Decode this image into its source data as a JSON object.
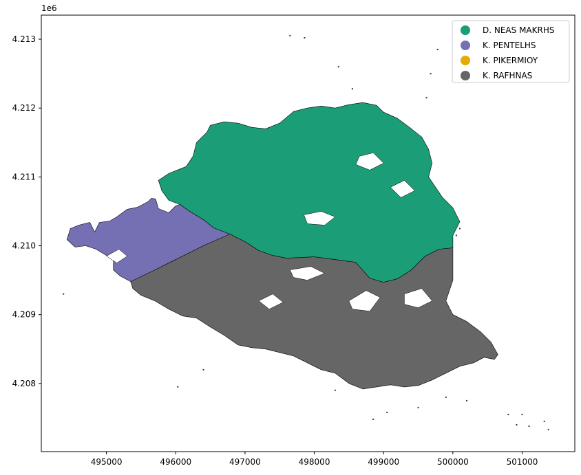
{
  "chart_data": {
    "type": "map",
    "title": "",
    "xlabel": "",
    "ylabel": "",
    "y_offset_label": "1e6",
    "xlim": [
      494060,
      501760
    ],
    "ylim": [
      4207010,
      4213350
    ],
    "x_ticks": [
      {
        "value": 495000,
        "label": "495000"
      },
      {
        "value": 496000,
        "label": "496000"
      },
      {
        "value": 497000,
        "label": "497000"
      },
      {
        "value": 498000,
        "label": "498000"
      },
      {
        "value": 499000,
        "label": "499000"
      },
      {
        "value": 500000,
        "label": "500000"
      },
      {
        "value": 501000,
        "label": "501000"
      }
    ],
    "y_ticks": [
      {
        "value": 4208000,
        "label": "4.208"
      },
      {
        "value": 4209000,
        "label": "4.209"
      },
      {
        "value": 4210000,
        "label": "4.210"
      },
      {
        "value": 4211000,
        "label": "4.211"
      },
      {
        "value": 4212000,
        "label": "4.212"
      },
      {
        "value": 4213000,
        "label": "4.213"
      }
    ],
    "grid": false,
    "legend_position": "upper right",
    "legend": [
      {
        "name": "D. NEAS MAKRHS",
        "color": "#1b9e77"
      },
      {
        "name": "K. PENTELHS",
        "color": "#7570b3"
      },
      {
        "name": "K. PIKERMIOY",
        "color": "#e6ab02"
      },
      {
        "name": "K. RAFHNAS",
        "color": "#666666"
      }
    ],
    "regions": [
      {
        "name": "K. PENTELHS",
        "color": "#7570b3",
        "polygon": [
          [
            495350,
            4209480
          ],
          [
            495200,
            4209560
          ],
          [
            495100,
            4209650
          ],
          [
            495100,
            4209800
          ],
          [
            494850,
            4209950
          ],
          [
            494700,
            4210000
          ],
          [
            494550,
            4209980
          ],
          [
            494430,
            4210090
          ],
          [
            494480,
            4210250
          ],
          [
            494600,
            4210300
          ],
          [
            494760,
            4210340
          ],
          [
            494830,
            4210200
          ],
          [
            494900,
            4210340
          ],
          [
            495050,
            4210360
          ],
          [
            495150,
            4210420
          ],
          [
            495300,
            4210530
          ],
          [
            495450,
            4210560
          ],
          [
            495600,
            4210640
          ],
          [
            495650,
            4210690
          ],
          [
            495710,
            4210680
          ],
          [
            495750,
            4210540
          ],
          [
            495900,
            4210480
          ],
          [
            496000,
            4210580
          ],
          [
            496060,
            4210600
          ],
          [
            496200,
            4210500
          ],
          [
            496400,
            4210380
          ],
          [
            496550,
            4210260
          ],
          [
            496780,
            4210170
          ],
          [
            496720,
            4210140
          ],
          [
            496400,
            4210000
          ],
          [
            496000,
            4209800
          ],
          [
            495700,
            4209650
          ],
          [
            495400,
            4209480
          ]
        ]
      },
      {
        "name": "K. RAFHNAS",
        "color": "#666666",
        "polygon": [
          [
            495350,
            4209480
          ],
          [
            495700,
            4209650
          ],
          [
            496000,
            4209800
          ],
          [
            496400,
            4210000
          ],
          [
            496780,
            4210170
          ],
          [
            497000,
            4210060
          ],
          [
            497200,
            4209930
          ],
          [
            497400,
            4209860
          ],
          [
            497600,
            4209820
          ],
          [
            497800,
            4209830
          ],
          [
            498000,
            4209840
          ],
          [
            498300,
            4209800
          ],
          [
            498600,
            4209760
          ],
          [
            498800,
            4209530
          ],
          [
            499000,
            4209470
          ],
          [
            499200,
            4209520
          ],
          [
            499400,
            4209650
          ],
          [
            499600,
            4209850
          ],
          [
            499800,
            4209950
          ],
          [
            500000,
            4209970
          ],
          [
            500000,
            4209500
          ],
          [
            499900,
            4209200
          ],
          [
            500000,
            4209000
          ],
          [
            500200,
            4208900
          ],
          [
            500400,
            4208750
          ],
          [
            500550,
            4208600
          ],
          [
            500650,
            4208420
          ],
          [
            500600,
            4208350
          ],
          [
            500450,
            4208380
          ],
          [
            500300,
            4208300
          ],
          [
            500100,
            4208250
          ],
          [
            499900,
            4208150
          ],
          [
            499700,
            4208050
          ],
          [
            499500,
            4207970
          ],
          [
            499300,
            4207950
          ],
          [
            499100,
            4207980
          ],
          [
            498900,
            4207950
          ],
          [
            498700,
            4207920
          ],
          [
            498500,
            4208000
          ],
          [
            498300,
            4208150
          ],
          [
            498100,
            4208200
          ],
          [
            497900,
            4208300
          ],
          [
            497700,
            4208400
          ],
          [
            497500,
            4208450
          ],
          [
            497300,
            4208500
          ],
          [
            497100,
            4208520
          ],
          [
            496900,
            4208560
          ],
          [
            496700,
            4208700
          ],
          [
            496500,
            4208820
          ],
          [
            496300,
            4208950
          ],
          [
            496100,
            4208980
          ],
          [
            495900,
            4209080
          ],
          [
            495700,
            4209200
          ],
          [
            495500,
            4209280
          ],
          [
            495380,
            4209380
          ]
        ]
      },
      {
        "name": "D. NEAS MAKRHS",
        "color": "#1b9e77",
        "polygon": [
          [
            496060,
            4210600
          ],
          [
            495900,
            4210660
          ],
          [
            495800,
            4210800
          ],
          [
            495750,
            4210950
          ],
          [
            495900,
            4211050
          ],
          [
            496150,
            4211150
          ],
          [
            496250,
            4211300
          ],
          [
            496300,
            4211500
          ],
          [
            496450,
            4211650
          ],
          [
            496500,
            4211750
          ],
          [
            496700,
            4211800
          ],
          [
            496900,
            4211780
          ],
          [
            497100,
            4211720
          ],
          [
            497300,
            4211700
          ],
          [
            497500,
            4211780
          ],
          [
            497700,
            4211950
          ],
          [
            497900,
            4212000
          ],
          [
            498100,
            4212030
          ],
          [
            498300,
            4212000
          ],
          [
            498500,
            4212050
          ],
          [
            498700,
            4212080
          ],
          [
            498900,
            4212040
          ],
          [
            499000,
            4211940
          ],
          [
            499200,
            4211850
          ],
          [
            499400,
            4211700
          ],
          [
            499550,
            4211580
          ],
          [
            499650,
            4211400
          ],
          [
            499700,
            4211200
          ],
          [
            499650,
            4211000
          ],
          [
            499750,
            4210850
          ],
          [
            499850,
            4210700
          ],
          [
            500000,
            4210550
          ],
          [
            500100,
            4210350
          ],
          [
            500000,
            4210150
          ],
          [
            500000,
            4209970
          ],
          [
            499800,
            4209950
          ],
          [
            499600,
            4209850
          ],
          [
            499400,
            4209650
          ],
          [
            499200,
            4209520
          ],
          [
            499000,
            4209470
          ],
          [
            498800,
            4209530
          ],
          [
            498600,
            4209760
          ],
          [
            498300,
            4209800
          ],
          [
            498000,
            4209840
          ],
          [
            497800,
            4209830
          ],
          [
            497600,
            4209820
          ],
          [
            497400,
            4209860
          ],
          [
            497200,
            4209930
          ],
          [
            497000,
            4210060
          ],
          [
            496780,
            4210170
          ],
          [
            496550,
            4210260
          ],
          [
            496400,
            4210380
          ],
          [
            496200,
            4210500
          ]
        ]
      }
    ],
    "holes": [
      [
        [
          497850,
          4210450
        ],
        [
          498100,
          4210500
        ],
        [
          498300,
          4210420
        ],
        [
          498150,
          4210300
        ],
        [
          497900,
          4210320
        ]
      ],
      [
        [
          498650,
          4211300
        ],
        [
          498850,
          4211350
        ],
        [
          499000,
          4211200
        ],
        [
          498800,
          4211100
        ],
        [
          498600,
          4211180
        ]
      ],
      [
        [
          499100,
          4210850
        ],
        [
          499300,
          4210950
        ],
        [
          499450,
          4210800
        ],
        [
          499250,
          4210700
        ]
      ],
      [
        [
          497650,
          4209650
        ],
        [
          497950,
          4209700
        ],
        [
          498150,
          4209600
        ],
        [
          497900,
          4209500
        ],
        [
          497700,
          4209540
        ]
      ],
      [
        [
          498500,
          4209200
        ],
        [
          498750,
          4209350
        ],
        [
          498950,
          4209250
        ],
        [
          498800,
          4209050
        ],
        [
          498550,
          4209080
        ]
      ],
      [
        [
          499300,
          4209300
        ],
        [
          499550,
          4209380
        ],
        [
          499700,
          4209200
        ],
        [
          499500,
          4209100
        ],
        [
          499300,
          4209150
        ]
      ],
      [
        [
          497200,
          4209200
        ],
        [
          497400,
          4209300
        ],
        [
          497550,
          4209180
        ],
        [
          497350,
          4209080
        ]
      ],
      [
        [
          495000,
          4209850
        ],
        [
          495180,
          4209950
        ],
        [
          495300,
          4209850
        ],
        [
          495150,
          4209750
        ]
      ]
    ],
    "outliers": [
      [
        494380,
        4209300
      ],
      [
        496030,
        4207950
      ],
      [
        497650,
        4213050
      ],
      [
        497860,
        4213020
      ],
      [
        498350,
        4212600
      ],
      [
        498550,
        4212280
      ],
      [
        499620,
        4212150
      ],
      [
        499780,
        4212850
      ],
      [
        499680,
        4212500
      ],
      [
        500100,
        4210250
      ],
      [
        500050,
        4210150
      ],
      [
        496400,
        4208200
      ],
      [
        500800,
        4207550
      ],
      [
        500920,
        4207400
      ],
      [
        501100,
        4207380
      ],
      [
        501320,
        4207450
      ],
      [
        501380,
        4207330
      ],
      [
        499900,
        4207800
      ],
      [
        499050,
        4207580
      ],
      [
        499500,
        4207650
      ],
      [
        500200,
        4207750
      ],
      [
        498300,
        4207900
      ],
      [
        501000,
        4207550
      ],
      [
        498850,
        4207480
      ]
    ]
  }
}
